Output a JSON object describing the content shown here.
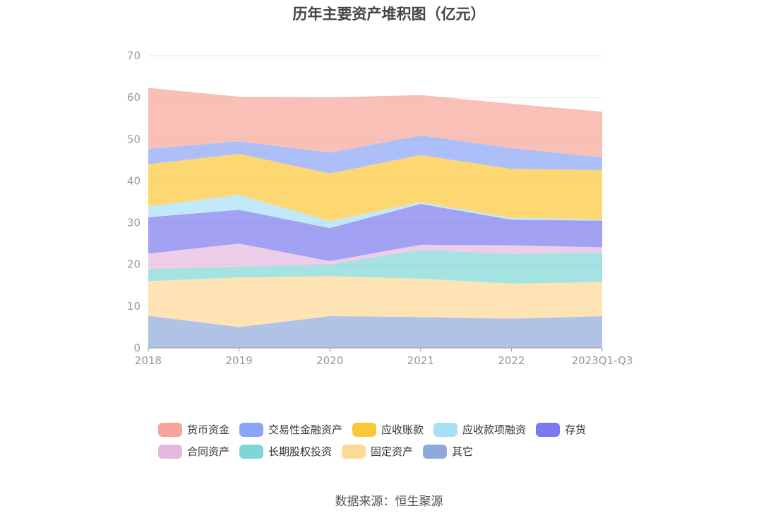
{
  "title": "历年主要资产堆积图（亿元）",
  "source": "数据来源：恒生聚源",
  "chart_data": {
    "type": "area",
    "stacked": true,
    "title": "历年主要资产堆积图（亿元）",
    "categories": [
      "2018",
      "2019",
      "2020",
      "2021",
      "2022",
      "2023Q1-Q3"
    ],
    "ylim": [
      0,
      70
    ],
    "yticks": [
      0,
      10,
      20,
      30,
      40,
      50,
      60,
      70
    ],
    "grid": true,
    "legend_position": "bottom",
    "series": [
      {
        "name": "其它",
        "color": "#8eaadc",
        "values": [
          7.7,
          5.0,
          7.6,
          7.4,
          7.0,
          7.6
        ]
      },
      {
        "name": "固定资产",
        "color": "#fdd996",
        "values": [
          8.3,
          11.9,
          9.6,
          9.2,
          8.4,
          8.2
        ]
      },
      {
        "name": "长期股权投资",
        "color": "#7fd6d6",
        "values": [
          2.9,
          2.6,
          2.8,
          6.9,
          7.1,
          7.1
        ]
      },
      {
        "name": "合同资产",
        "color": "#e6b8de",
        "values": [
          3.7,
          5.5,
          0.8,
          1.2,
          2.1,
          1.2
        ]
      },
      {
        "name": "存货",
        "color": "#7b79f0",
        "values": [
          8.7,
          8.1,
          7.9,
          9.8,
          6.1,
          6.4
        ]
      },
      {
        "name": "应收款项融资",
        "color": "#a7dff7",
        "values": [
          2.6,
          3.6,
          1.7,
          0.4,
          0.5,
          0.3
        ]
      },
      {
        "name": "应收账款",
        "color": "#fcc736",
        "values": [
          10.1,
          9.8,
          11.4,
          11.3,
          11.7,
          11.8
        ]
      },
      {
        "name": "交易性金融资产",
        "color": "#8aa4f7",
        "values": [
          3.7,
          3.0,
          5.0,
          4.7,
          5.0,
          3.0
        ]
      },
      {
        "name": "货币资金",
        "color": "#f7a59a",
        "values": [
          14.6,
          10.7,
          13.2,
          9.7,
          10.6,
          11.0
        ]
      }
    ]
  }
}
